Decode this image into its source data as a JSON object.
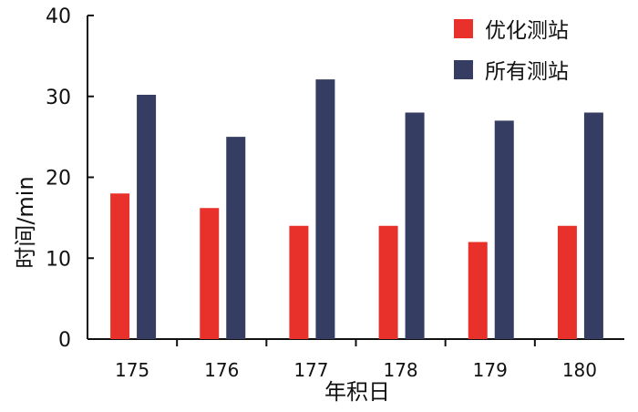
{
  "chart_data": {
    "type": "bar",
    "title": "",
    "xlabel": "年积日",
    "ylabel": "时间/min",
    "categories": [
      "175",
      "176",
      "177",
      "178",
      "179",
      "180"
    ],
    "series": [
      {
        "name": "优化测站",
        "color": "#e8312a",
        "values": [
          18,
          16.2,
          14,
          14,
          12,
          14
        ]
      },
      {
        "name": "所有测站",
        "color": "#353d62",
        "values": [
          30.2,
          25,
          32.1,
          28,
          27,
          28
        ]
      }
    ],
    "ylim": [
      0,
      40
    ],
    "yticks": [
      0,
      10,
      20,
      30,
      40
    ],
    "grid": false,
    "legend_position": "top-right"
  }
}
